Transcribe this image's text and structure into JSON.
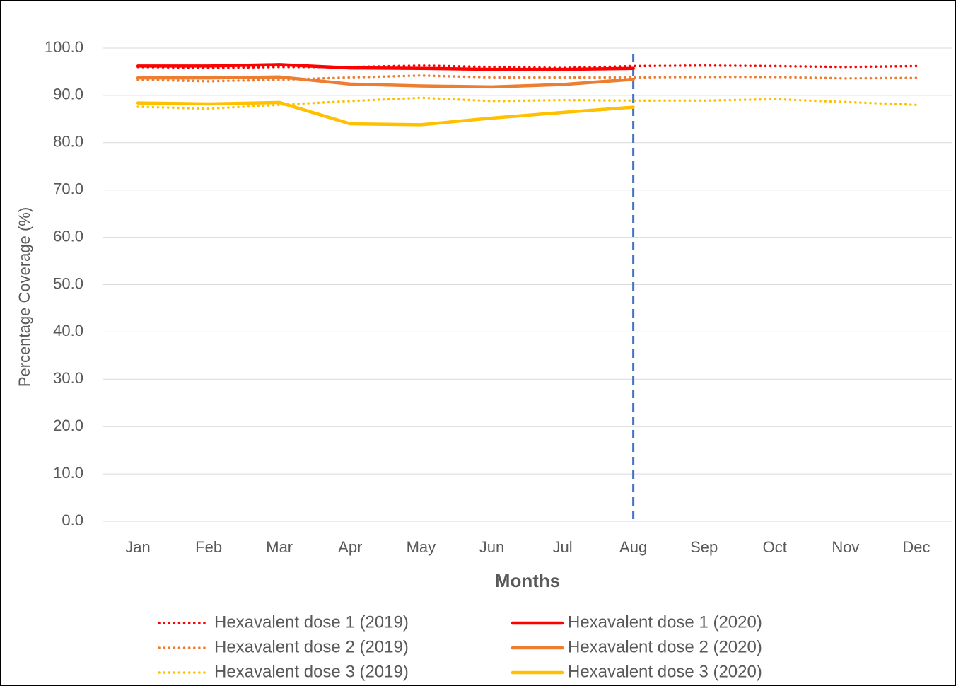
{
  "chart_data": {
    "type": "line",
    "y_label": "Percentage Coverage (%)",
    "x_label": "Months",
    "categories": [
      "Jan",
      "Feb",
      "Mar",
      "Apr",
      "May",
      "Jun",
      "Jul",
      "Aug",
      "Sep",
      "Oct",
      "Nov",
      "Dec"
    ],
    "ylim": [
      0,
      100
    ],
    "yticks": [
      {
        "value": 0,
        "label": "0.0"
      },
      {
        "value": 10,
        "label": "10.0"
      },
      {
        "value": 20,
        "label": "20.0"
      },
      {
        "value": 30,
        "label": "30.0"
      },
      {
        "value": 40,
        "label": "40.0"
      },
      {
        "value": 50,
        "label": "50.0"
      },
      {
        "value": 60,
        "label": "60.0"
      },
      {
        "value": 70,
        "label": "70.0"
      },
      {
        "value": 80,
        "label": "80.0"
      },
      {
        "value": 90,
        "label": "90.0"
      },
      {
        "value": 100,
        "label": "100.0"
      }
    ],
    "grid": true,
    "legend": "bottom",
    "vline_at": "Aug",
    "vline_color": "#4472c4",
    "series": [
      {
        "name": "Hexavalent dose 1 (2019)",
        "color": "#ff0000",
        "style": "dotted",
        "values": [
          96.0,
          95.8,
          96.0,
          96.0,
          96.3,
          96.0,
          95.8,
          96.2,
          96.3,
          96.2,
          96.0,
          96.2
        ]
      },
      {
        "name": "Hexavalent dose 1 (2020)",
        "color": "#ff0000",
        "style": "solid",
        "values": [
          96.2,
          96.2,
          96.5,
          95.8,
          95.7,
          95.5,
          95.5,
          95.7,
          null,
          null,
          null,
          null
        ]
      },
      {
        "name": "Hexavalent dose 2 (2019)",
        "color": "#ed7d31",
        "style": "dotted",
        "values": [
          93.3,
          93.0,
          93.3,
          93.8,
          94.2,
          93.8,
          93.8,
          93.8,
          93.9,
          93.9,
          93.6,
          93.7
        ]
      },
      {
        "name": "Hexavalent dose 2 (2020)",
        "color": "#ed7d31",
        "style": "solid",
        "values": [
          93.7,
          93.7,
          93.9,
          92.4,
          92.0,
          91.8,
          92.3,
          93.4,
          null,
          null,
          null,
          null
        ]
      },
      {
        "name": "Hexavalent dose 3 (2019)",
        "color": "#ffc000",
        "style": "dotted",
        "values": [
          87.6,
          87.2,
          88.0,
          88.8,
          89.5,
          88.8,
          89.0,
          88.9,
          88.9,
          89.2,
          88.6,
          88.0
        ]
      },
      {
        "name": "Hexavalent dose 3 (2020)",
        "color": "#ffc000",
        "style": "solid",
        "values": [
          88.4,
          88.2,
          88.5,
          84.0,
          83.8,
          85.2,
          86.4,
          87.5,
          null,
          null,
          null,
          null
        ]
      }
    ]
  }
}
